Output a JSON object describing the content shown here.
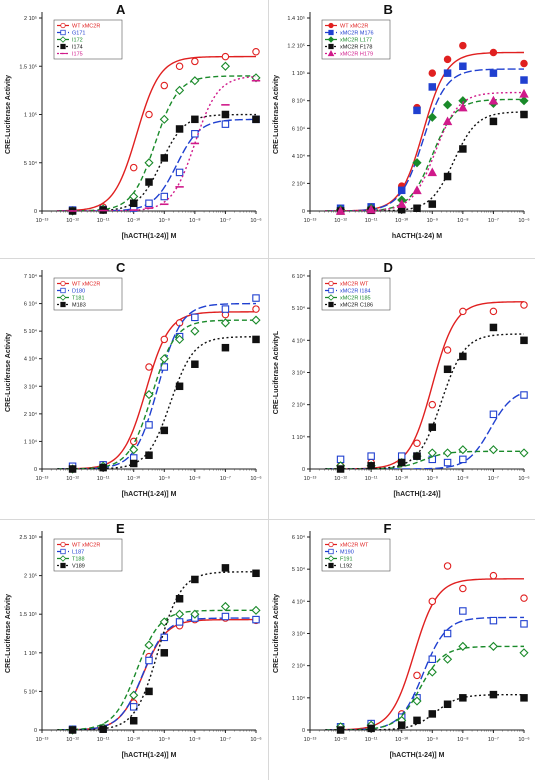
{
  "chart_data": [
    {
      "panel": "A",
      "type": "scatter",
      "ylabel": "CRE-Luciferase Activity",
      "xlabel": "[hACTH(1-24)] M",
      "xscale": "log",
      "xlim": [
        -13,
        -6
      ],
      "x_tick_labels": [
        "10⁻¹³",
        "10⁻¹²",
        "10⁻¹¹",
        "10⁻¹⁰",
        "10⁻⁹",
        "10⁻⁸",
        "10⁻⁷",
        "10⁻⁶"
      ],
      "ylim": [
        0,
        200000
      ],
      "y_ticks": [
        0,
        50000,
        100000,
        150000,
        200000
      ],
      "y_tick_labels": [
        "0",
        "5 10⁴",
        "1 10⁵",
        "1.5 10⁵",
        "2 10⁵"
      ],
      "legend_position": "top-left",
      "x": [
        -12,
        -11,
        -10,
        -9.5,
        -9,
        -8.5,
        -8,
        -7,
        -6
      ],
      "series": [
        {
          "name": "WT xMC2R",
          "color": "#e02020",
          "marker": "open-circle",
          "dash": "solid",
          "ec50": -9.9,
          "top": 160000,
          "values": [
            1000,
            4000,
            45000,
            100000,
            130000,
            150000,
            155000,
            160000,
            165000
          ]
        },
        {
          "name": "G171",
          "color": "#2040d0",
          "marker": "open-square",
          "dash": "longdash",
          "ec50": -8.6,
          "top": 95000,
          "values": [
            1000,
            1500,
            3000,
            8000,
            15000,
            40000,
            80000,
            90000,
            95000
          ]
        },
        {
          "name": "I172",
          "color": "#1a8a2a",
          "marker": "open-diamond",
          "dash": "dash",
          "ec50": -9.3,
          "top": 140000,
          "values": [
            0,
            2000,
            15000,
            50000,
            95000,
            125000,
            135000,
            150000,
            138000
          ]
        },
        {
          "name": "I174",
          "color": "#111111",
          "marker": "filled-square",
          "dash": "dot",
          "ec50": -9.1,
          "top": 100000,
          "values": [
            0,
            1000,
            8000,
            30000,
            55000,
            85000,
            95000,
            100000,
            95000
          ]
        },
        {
          "name": "I175",
          "color": "#d01a8a",
          "marker": "dash",
          "dash": "dot",
          "ec50": -8.0,
          "top": 140000,
          "values": [
            0,
            500,
            1000,
            3000,
            7000,
            25000,
            70000,
            110000,
            135000
          ]
        }
      ]
    },
    {
      "panel": "B",
      "type": "scatter",
      "ylabel": "CRE-Luciferase Activity",
      "xlabel": "hACTH(1-24) M",
      "xscale": "log",
      "xlim": [
        -13,
        -6
      ],
      "x_tick_labels": [
        "10⁻¹³",
        "10⁻¹²",
        "10⁻¹¹",
        "10⁻¹⁰",
        "10⁻⁹",
        "10⁻⁸",
        "10⁻⁷",
        "10⁻⁶"
      ],
      "ylim": [
        0,
        140000
      ],
      "y_ticks": [
        0,
        20000,
        40000,
        60000,
        80000,
        100000,
        120000,
        140000
      ],
      "y_tick_labels": [
        "0",
        "2 10⁴",
        "4 10⁴",
        "6 10⁴",
        "8 10⁴",
        "1 10⁵",
        "1.2 10⁵",
        "1.4 10⁵"
      ],
      "legend_position": "top-left",
      "x": [
        -12,
        -11,
        -10,
        -9.5,
        -9,
        -8.5,
        -8,
        -7,
        -6
      ],
      "series": [
        {
          "name": "WT xMC2R",
          "color": "#e02020",
          "marker": "filled-circle",
          "dash": "solid",
          "ec50": -9.3,
          "top": 115000,
          "values": [
            2000,
            3000,
            18000,
            75000,
            100000,
            110000,
            120000,
            115000,
            107000
          ]
        },
        {
          "name": "xMC2R M176",
          "color": "#2040d0",
          "marker": "filled-square",
          "dash": "longdash",
          "ec50": -9.3,
          "top": 103000,
          "values": [
            2000,
            3000,
            15000,
            73000,
            90000,
            100000,
            105000,
            100000,
            95000
          ]
        },
        {
          "name": "xMC2R L177",
          "color": "#1a8a2a",
          "marker": "filled-diamond",
          "dash": "dash",
          "ec50": -9.0,
          "top": 81000,
          "values": [
            1000,
            2000,
            8000,
            35000,
            68000,
            77000,
            80000,
            78000,
            80000
          ]
        },
        {
          "name": "xMC2R F178",
          "color": "#111111",
          "marker": "filled-square",
          "dash": "dot",
          "ec50": -8.3,
          "top": 72000,
          "values": [
            0,
            500,
            1000,
            2000,
            5000,
            25000,
            45000,
            65000,
            70000
          ]
        },
        {
          "name": "xMC2R H179",
          "color": "#d01a8a",
          "marker": "filled-triangle",
          "dash": "dot",
          "ec50": -8.9,
          "top": 86000,
          "values": [
            0,
            1000,
            5000,
            15000,
            28000,
            65000,
            75000,
            80000,
            85000
          ]
        }
      ]
    },
    {
      "panel": "C",
      "type": "scatter",
      "ylabel": "CRE-Luciferase Activity",
      "xlabel": "[hACTH(1-24)] M",
      "xscale": "log",
      "xlim": [
        -13,
        -6
      ],
      "x_tick_labels": [
        "10⁻¹³",
        "10⁻¹²",
        "10⁻¹¹",
        "10⁻¹⁰",
        "10⁻⁹",
        "10⁻⁸",
        "10⁻⁷",
        "10⁻⁶"
      ],
      "ylim": [
        0,
        70000
      ],
      "y_ticks": [
        0,
        10000,
        20000,
        30000,
        40000,
        50000,
        60000,
        70000
      ],
      "y_tick_labels": [
        "0",
        "1 10⁴",
        "2 10⁴",
        "3 10⁴",
        "4 10⁴",
        "5 10⁴",
        "6 10⁴",
        "7 10⁴"
      ],
      "legend_position": "top-left",
      "x": [
        -12,
        -11,
        -10,
        -9.5,
        -9,
        -8.5,
        -8,
        -7,
        -6
      ],
      "series": [
        {
          "name": "WT xMC2R",
          "color": "#e02020",
          "marker": "open-circle",
          "dash": "solid",
          "ec50": -9.6,
          "top": 57000,
          "values": [
            1000,
            1500,
            10000,
            37000,
            47000,
            53000,
            55000,
            56000,
            58000
          ]
        },
        {
          "name": "D180",
          "color": "#2040d0",
          "marker": "open-square",
          "dash": "longdash",
          "ec50": -9.2,
          "top": 60000,
          "values": [
            1000,
            1500,
            4000,
            16000,
            37000,
            48000,
            55000,
            58000,
            62000
          ]
        },
        {
          "name": "T181",
          "color": "#1a8a2a",
          "marker": "open-diamond",
          "dash": "dash",
          "ec50": -9.4,
          "top": 54000,
          "values": [
            0,
            1000,
            7000,
            27000,
            40000,
            47000,
            50000,
            53000,
            54000
          ]
        },
        {
          "name": "M183",
          "color": "#111111",
          "marker": "filled-square",
          "dash": "dot",
          "ec50": -8.8,
          "top": 48000,
          "values": [
            0,
            500,
            2000,
            5000,
            14000,
            30000,
            38000,
            44000,
            47000
          ]
        }
      ]
    },
    {
      "panel": "D",
      "type": "scatter",
      "ylabel": "CRE-Luciferase ActivityL",
      "xlabel": "[hACTH(1-24)]",
      "xscale": "log",
      "xlim": [
        -13,
        -6
      ],
      "x_tick_labels": [
        "10⁻¹³",
        "10⁻¹²",
        "10⁻¹¹",
        "10⁻¹⁰",
        "10⁻⁹",
        "10⁻⁸",
        "10⁻⁷",
        "10⁻⁶"
      ],
      "ylim": [
        0,
        60000
      ],
      "y_ticks": [
        0,
        10000,
        20000,
        30000,
        40000,
        50000,
        60000
      ],
      "y_tick_labels": [
        "0",
        "1 10⁴",
        "2 10⁴",
        "3 10⁴",
        "4 10⁴",
        "5 10⁴",
        "6 10⁴"
      ],
      "legend_position": "top-left",
      "x": [
        -12,
        -11,
        -10,
        -9.5,
        -9,
        -8.5,
        -8,
        -7,
        -6
      ],
      "series": [
        {
          "name": "xMC2R WT",
          "color": "#e02020",
          "marker": "open-circle",
          "dash": "solid",
          "ec50": -9.0,
          "top": 52000,
          "values": [
            1000,
            2000,
            3000,
            8000,
            20000,
            37000,
            49000,
            49000,
            51000
          ]
        },
        {
          "name": "xMC2R I184",
          "color": "#2040d0",
          "marker": "open-square",
          "dash": "longdash",
          "ec50": -7.1,
          "top": 25000,
          "values": [
            3000,
            4000,
            4000,
            4000,
            3000,
            2000,
            3000,
            17000,
            23000
          ]
        },
        {
          "name": "xMC2R I185",
          "color": "#1a8a2a",
          "marker": "open-diamond",
          "dash": "dash",
          "ec50": -9.3,
          "top": 5500,
          "values": [
            1000,
            1000,
            2000,
            4000,
            5000,
            5000,
            6000,
            6000,
            5000
          ]
        },
        {
          "name": "xMC2R C186",
          "color": "#111111",
          "marker": "filled-square",
          "dash": "dot",
          "ec50": -8.7,
          "top": 42000,
          "values": [
            0,
            1000,
            2000,
            4000,
            13000,
            31000,
            35000,
            44000,
            40000
          ]
        }
      ]
    },
    {
      "panel": "E",
      "type": "scatter",
      "ylabel": "CRE-Luciferase Activity",
      "xlabel": "[hACTH(1-24)] M",
      "xscale": "log",
      "xlim": [
        -13,
        -6
      ],
      "x_tick_labels": [
        "10⁻¹³",
        "10⁻¹²",
        "10⁻¹¹",
        "10⁻¹⁰",
        "10⁻⁹",
        "10⁻⁸",
        "10⁻⁷",
        "10⁻⁶"
      ],
      "ylim": [
        0,
        250000
      ],
      "y_ticks": [
        0,
        50000,
        100000,
        150000,
        200000,
        250000
      ],
      "y_tick_labels": [
        "0",
        "5 10⁴",
        "1 10⁵",
        "1.5 10⁵",
        "2 10⁵",
        "2.5 10⁵"
      ],
      "legend_position": "top-left",
      "x": [
        -12,
        -11,
        -10,
        -9.5,
        -9,
        -8.5,
        -8,
        -7,
        -6
      ],
      "series": [
        {
          "name": "WT xMC2R",
          "color": "#e02020",
          "marker": "open-circle",
          "dash": "solid",
          "ec50": -9.7,
          "top": 143000,
          "values": [
            1000,
            2000,
            35000,
            95000,
            120000,
            135000,
            143000,
            145000,
            142000
          ]
        },
        {
          "name": "L187",
          "color": "#2040d0",
          "marker": "open-square",
          "dash": "longdash",
          "ec50": -9.7,
          "top": 145000,
          "values": [
            1000,
            2000,
            30000,
            90000,
            120000,
            140000,
            145000,
            147000,
            143000
          ]
        },
        {
          "name": "T188",
          "color": "#1a8a2a",
          "marker": "open-diamond",
          "dash": "dash",
          "ec50": -9.9,
          "top": 155000,
          "values": [
            0,
            3000,
            45000,
            110000,
            140000,
            150000,
            150000,
            160000,
            155000
          ]
        },
        {
          "name": "V189",
          "color": "#111111",
          "marker": "filled-square",
          "dash": "dot",
          "ec50": -9.2,
          "top": 205000,
          "values": [
            0,
            1000,
            12000,
            50000,
            100000,
            170000,
            195000,
            210000,
            203000
          ]
        }
      ]
    },
    {
      "panel": "F",
      "type": "scatter",
      "ylabel": "CRE-Luciferase Activity",
      "xlabel": "[hACTH(1-24)] M",
      "xscale": "log",
      "xlim": [
        -13,
        -6
      ],
      "x_tick_labels": [
        "10⁻¹³",
        "10⁻¹²",
        "10⁻¹¹",
        "10⁻¹⁰",
        "10⁻⁹",
        "10⁻⁸",
        "10⁻⁷",
        "10⁻⁶"
      ],
      "ylim": [
        0,
        60000
      ],
      "y_ticks": [
        0,
        10000,
        20000,
        30000,
        40000,
        50000,
        60000
      ],
      "y_tick_labels": [
        "0",
        "1 10⁴",
        "2 10⁴",
        "3 10⁴",
        "4 10⁴",
        "5 10⁴",
        "6 10⁴"
      ],
      "legend_position": "top-left",
      "x": [
        -12,
        -11,
        -10,
        -9.5,
        -9,
        -8.5,
        -8,
        -7,
        -6
      ],
      "series": [
        {
          "name": "xMC2R WT",
          "color": "#e02020",
          "marker": "open-circle",
          "dash": "solid",
          "ec50": -9.6,
          "top": 47000,
          "values": [
            1000,
            2000,
            5000,
            17000,
            40000,
            51000,
            44000,
            48000,
            41000
          ]
        },
        {
          "name": "M190",
          "color": "#2040d0",
          "marker": "open-square",
          "dash": "longdash",
          "ec50": -9.3,
          "top": 35000,
          "values": [
            1000,
            2000,
            4000,
            10000,
            22000,
            30000,
            37000,
            34000,
            33000
          ]
        },
        {
          "name": "F191",
          "color": "#1a8a2a",
          "marker": "open-diamond",
          "dash": "dash",
          "ec50": -9.4,
          "top": 26000,
          "values": [
            1000,
            1500,
            3000,
            9000,
            18000,
            22000,
            26000,
            26000,
            24000
          ]
        },
        {
          "name": "L192",
          "color": "#111111",
          "marker": "filled-square",
          "dash": "dot",
          "ec50": -8.9,
          "top": 11000,
          "values": [
            0,
            500,
            1500,
            3000,
            5000,
            8000,
            10000,
            11000,
            10000
          ]
        }
      ]
    }
  ]
}
